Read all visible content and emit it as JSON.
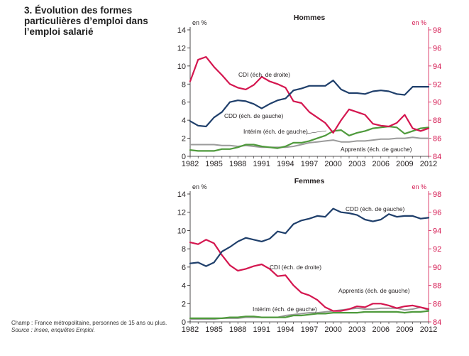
{
  "title": "3. Évolution des formes particulières d’emploi dans l’emploi salarié",
  "footnote": {
    "champ": "Champ : France métropolitaine, personnes de 15 ans ou plus.",
    "source": "Source : Insee, enquêtes Emploi."
  },
  "colors": {
    "cdi": "#d4164f",
    "cdd": "#1f3f6b",
    "interim": "#4f9a3c",
    "apprentis": "#9b9b9b",
    "right_axis": "#d4164f"
  },
  "chart_data": [
    {
      "type": "line",
      "title": "Hommes",
      "left_unit": "en %",
      "right_unit": "en %",
      "ylim_left": [
        0,
        14
      ],
      "ylim_right": [
        84,
        98
      ],
      "left_ticks": [
        "0",
        "2",
        "4",
        "6",
        "8",
        "10",
        "12",
        "14"
      ],
      "right_ticks": [
        "84",
        "86",
        "88",
        "90",
        "92",
        "94",
        "96",
        "98"
      ],
      "xlim": [
        1982,
        2012
      ],
      "x_ticks": [
        "1982",
        "1985",
        "1988",
        "1991",
        "1994",
        "1997",
        "2000",
        "2003",
        "2006",
        "2009",
        "2012"
      ],
      "x": [
        1982,
        1983,
        1984,
        1985,
        1986,
        1987,
        1988,
        1989,
        1990,
        1991,
        1992,
        1993,
        1994,
        1995,
        1996,
        1997,
        1998,
        1999,
        2000,
        2001,
        2002,
        2003,
        2004,
        2005,
        2006,
        2007,
        2008,
        2009,
        2010,
        2011,
        2012
      ],
      "series": [
        {
          "key": "cdi",
          "axis": "right",
          "label": "CDI (éch. de droite)",
          "values": [
            92.3,
            94.7,
            95.0,
            93.9,
            93.0,
            92.0,
            91.6,
            91.4,
            91.9,
            92.8,
            92.3,
            92.0,
            91.6,
            90.1,
            89.9,
            88.9,
            88.3,
            87.7,
            86.6,
            88.0,
            89.2,
            88.9,
            88.6,
            87.6,
            87.4,
            87.3,
            87.7,
            88.6,
            87.1,
            86.8,
            87.1
          ]
        },
        {
          "key": "cdd",
          "axis": "left",
          "label": "CDD (éch. de gauche)",
          "values": [
            3.9,
            3.4,
            3.3,
            4.3,
            4.9,
            6.0,
            6.2,
            6.1,
            5.8,
            5.3,
            5.8,
            6.2,
            6.4,
            7.3,
            7.5,
            7.8,
            7.8,
            7.8,
            8.4,
            7.4,
            7.0,
            7.0,
            6.9,
            7.2,
            7.3,
            7.2,
            6.9,
            6.8,
            7.7,
            7.7,
            7.7
          ]
        },
        {
          "key": "interim",
          "axis": "left",
          "label": "Intérim (éch. de gauche)",
          "values": [
            0.7,
            0.6,
            0.6,
            0.6,
            0.8,
            0.8,
            1.0,
            1.3,
            1.3,
            1.1,
            1.0,
            0.9,
            1.1,
            1.5,
            1.5,
            1.7,
            2.0,
            2.3,
            2.8,
            2.9,
            2.3,
            2.6,
            2.8,
            3.1,
            3.2,
            3.3,
            3.2,
            2.5,
            2.8,
            3.1,
            3.2
          ]
        },
        {
          "key": "apprentis",
          "axis": "left",
          "label": "Apprentis (éch. de gauche)",
          "values": [
            1.3,
            1.3,
            1.3,
            1.3,
            1.2,
            1.2,
            1.1,
            1.2,
            1.1,
            1.0,
            1.0,
            1.0,
            1.0,
            1.1,
            1.3,
            1.5,
            1.6,
            1.7,
            1.8,
            1.6,
            1.6,
            1.7,
            1.7,
            1.8,
            1.9,
            1.9,
            2.0,
            2.0,
            2.1,
            2.0,
            2.0
          ]
        }
      ]
    },
    {
      "type": "line",
      "title": "Femmes",
      "left_unit": "en %",
      "right_unit": "en %",
      "ylim_left": [
        0,
        14
      ],
      "ylim_right": [
        84,
        98
      ],
      "left_ticks": [
        "0",
        "2",
        "4",
        "6",
        "8",
        "10",
        "12",
        "14"
      ],
      "right_ticks": [
        "84",
        "86",
        "88",
        "90",
        "92",
        "94",
        "96",
        "98"
      ],
      "xlim": [
        1982,
        2012
      ],
      "x_ticks": [
        "1982",
        "1985",
        "1988",
        "1991",
        "1994",
        "1997",
        "2000",
        "2003",
        "2006",
        "2009",
        "2012"
      ],
      "x": [
        1982,
        1983,
        1984,
        1985,
        1986,
        1987,
        1988,
        1989,
        1990,
        1991,
        1992,
        1993,
        1994,
        1995,
        1996,
        1997,
        1998,
        1999,
        2000,
        2001,
        2002,
        2003,
        2004,
        2005,
        2006,
        2007,
        2008,
        2009,
        2010,
        2011,
        2012
      ],
      "series": [
        {
          "key": "cdi",
          "axis": "right",
          "label": "CDI (éch. de droite)",
          "values": [
            92.7,
            92.5,
            93.0,
            92.6,
            91.3,
            90.2,
            89.6,
            89.8,
            90.1,
            90.3,
            89.8,
            89.0,
            89.1,
            88.0,
            87.2,
            86.9,
            86.4,
            85.6,
            85.2,
            85.2,
            85.4,
            85.7,
            85.6,
            86.0,
            86.0,
            85.8,
            85.5,
            85.7,
            85.8,
            85.6,
            85.4
          ]
        },
        {
          "key": "cdd",
          "axis": "left",
          "label": "CDD (éch. de gauche)",
          "values": [
            6.4,
            6.5,
            6.1,
            6.5,
            7.7,
            8.2,
            8.8,
            9.2,
            9.0,
            8.8,
            9.1,
            9.9,
            9.7,
            10.7,
            11.1,
            11.3,
            11.6,
            11.5,
            12.4,
            12.0,
            11.9,
            11.7,
            11.2,
            11.0,
            11.2,
            11.8,
            11.5,
            11.6,
            11.6,
            11.3,
            11.4
          ]
        },
        {
          "key": "interim",
          "axis": "left",
          "label": "Intérim (éch. de gauche)",
          "values": [
            0.4,
            0.4,
            0.4,
            0.4,
            0.4,
            0.5,
            0.5,
            0.6,
            0.6,
            0.5,
            0.5,
            0.5,
            0.5,
            0.7,
            0.7,
            0.8,
            0.9,
            0.9,
            1.0,
            1.0,
            1.0,
            1.0,
            1.1,
            1.1,
            1.1,
            1.1,
            1.1,
            1.0,
            1.1,
            1.1,
            1.2
          ]
        },
        {
          "key": "apprentis",
          "axis": "left",
          "label": "Apprentis (éch. de gauche)",
          "values": [
            0.3,
            0.3,
            0.3,
            0.3,
            0.4,
            0.4,
            0.4,
            0.5,
            0.5,
            0.5,
            0.5,
            0.5,
            0.7,
            0.8,
            0.9,
            1.0,
            1.0,
            1.1,
            1.2,
            1.3,
            1.4,
            1.5,
            1.4,
            1.4,
            1.5,
            1.5,
            1.5,
            1.3,
            1.4,
            1.6,
            1.3
          ]
        }
      ]
    }
  ]
}
